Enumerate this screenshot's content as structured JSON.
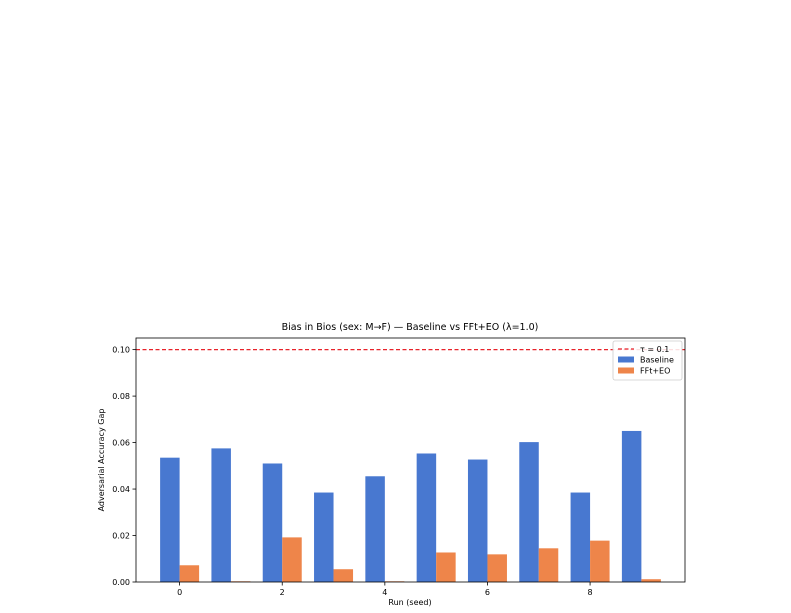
{
  "chart_data": {
    "type": "bar",
    "title": "Bias in Bios (sex: M→F) — Baseline vs FFt+EO  (λ=1.0)",
    "xlabel": "Run (seed)",
    "ylabel": "Adversarial Accuracy Gap",
    "x": [
      0,
      1,
      2,
      3,
      4,
      5,
      6,
      7,
      8,
      9
    ],
    "xticks": [
      0,
      2,
      4,
      6,
      8
    ],
    "xtick_labels": [
      "0",
      "2",
      "4",
      "6",
      "8"
    ],
    "ylim": [
      0,
      0.105
    ],
    "yticks": [
      0,
      0.02,
      0.04,
      0.06,
      0.08,
      0.1
    ],
    "ytick_labels": [
      "0.00",
      "0.02",
      "0.04",
      "0.06",
      "0.08",
      "0.10"
    ],
    "grid": false,
    "legend_position": "top-right",
    "series": [
      {
        "name": "Baseline",
        "color": "#4878d0",
        "values": [
          0.0535,
          0.0575,
          0.051,
          0.0385,
          0.0455,
          0.0553,
          0.0527,
          0.0602,
          0.0385,
          0.065
        ]
      },
      {
        "name": "FFt+EO",
        "color": "#ee854a",
        "values": [
          0.0072,
          0.0003,
          0.0192,
          0.0055,
          0.0003,
          0.0127,
          0.0119,
          0.0145,
          0.0178,
          0.0012
        ]
      }
    ],
    "threshold": {
      "label": "τ = 0.1",
      "value": 0.1,
      "color": "#e8222a",
      "style": "dashed"
    }
  }
}
